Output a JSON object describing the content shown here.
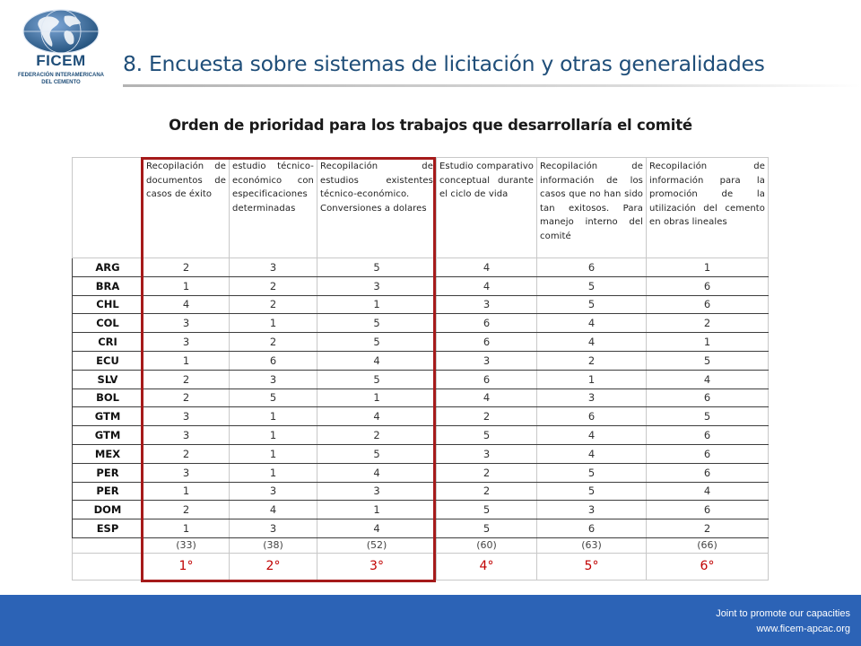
{
  "logo": {
    "name": "FICEM",
    "subtitle_line1": "FEDERACIÓN INTERAMERICANA",
    "subtitle_line2": "DEL CEMENTO"
  },
  "title": "8. Encuesta sobre sistemas de licitación y otras generalidades",
  "subtitle": "Orden de prioridad para los trabajos que desarrollaría el comité",
  "table": {
    "headers": [
      "Recopilación de documentos de casos de éxito",
      "estudio técnico-económico con especificaciones determinadas",
      "Recopilación de estudios existentes técnico-económico. Conversiones a dolares",
      "Estudio comparativo conceptual durante el ciclo de vida",
      "Recopilación de información de los casos que no han sido tan exitosos. Para manejo interno del comité",
      "Recopilación de información para la promoción de la utilización del cemento en obras lineales"
    ],
    "rows": [
      {
        "country": "ARG",
        "values": [
          "2",
          "3",
          "5",
          "4",
          "6",
          "1"
        ]
      },
      {
        "country": "BRA",
        "values": [
          "1",
          "2",
          "3",
          "4",
          "5",
          "6"
        ]
      },
      {
        "country": "CHL",
        "values": [
          "4",
          "2",
          "1",
          "3",
          "5",
          "6"
        ]
      },
      {
        "country": "COL",
        "values": [
          "3",
          "1",
          "5",
          "6",
          "4",
          "2"
        ]
      },
      {
        "country": "CRI",
        "values": [
          "3",
          "2",
          "5",
          "6",
          "4",
          "1"
        ]
      },
      {
        "country": "ECU",
        "values": [
          "1",
          "6",
          "4",
          "3",
          "2",
          "5"
        ]
      },
      {
        "country": "SLV",
        "values": [
          "2",
          "3",
          "5",
          "6",
          "1",
          "4"
        ]
      },
      {
        "country": "BOL",
        "values": [
          "2",
          "5",
          "1",
          "4",
          "3",
          "6"
        ]
      },
      {
        "country": "GTM",
        "values": [
          "3",
          "1",
          "4",
          "2",
          "6",
          "5"
        ]
      },
      {
        "country": "GTM",
        "values": [
          "3",
          "1",
          "2",
          "5",
          "4",
          "6"
        ]
      },
      {
        "country": "MEX",
        "values": [
          "2",
          "1",
          "5",
          "3",
          "4",
          "6"
        ]
      },
      {
        "country": "PER",
        "values": [
          "3",
          "1",
          "4",
          "2",
          "5",
          "6"
        ]
      },
      {
        "country": "PER",
        "values": [
          "1",
          "3",
          "3",
          "2",
          "5",
          "4"
        ]
      },
      {
        "country": "DOM",
        "values": [
          "2",
          "4",
          "1",
          "5",
          "3",
          "6"
        ]
      },
      {
        "country": "ESP",
        "values": [
          "1",
          "3",
          "4",
          "5",
          "6",
          "2"
        ]
      }
    ],
    "totals": [
      "(33)",
      "(38)",
      "(52)",
      "(60)",
      "(63)",
      "(66)"
    ],
    "ranks": [
      "1°",
      "2°",
      "3°",
      "4°",
      "5°",
      "6°"
    ]
  },
  "footer": {
    "line1": "Joint  to promote our capacities",
    "line2": "www.ficem-apcac.org"
  },
  "colors": {
    "title": "#1f4e79",
    "footer_bg": "#2c63b6",
    "rank_text": "#c00000",
    "highlight_frame": "#a51a1a"
  },
  "icons": {
    "logo": "globe-icon"
  }
}
